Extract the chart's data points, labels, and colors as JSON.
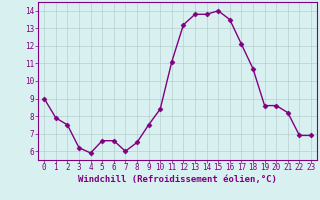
{
  "x": [
    0,
    1,
    2,
    3,
    4,
    5,
    6,
    7,
    8,
    9,
    10,
    11,
    12,
    13,
    14,
    15,
    16,
    17,
    18,
    19,
    20,
    21,
    22,
    23
  ],
  "y": [
    9.0,
    7.9,
    7.5,
    6.2,
    5.9,
    6.6,
    6.6,
    6.0,
    6.5,
    7.5,
    8.4,
    11.1,
    13.2,
    13.8,
    13.8,
    14.0,
    13.5,
    12.1,
    10.7,
    8.6,
    8.6,
    8.2,
    6.9,
    6.9
  ],
  "line_color": "#800080",
  "marker": "D",
  "marker_size": 2.5,
  "line_width": 1.0,
  "background_color": "#d9f0f0",
  "grid_color": "#b0c8c8",
  "xlabel": "Windchill (Refroidissement éolien,°C)",
  "xlabel_fontsize": 6.5,
  "ylim": [
    5.5,
    14.5
  ],
  "xlim": [
    -0.5,
    23.5
  ],
  "yticks": [
    6,
    7,
    8,
    9,
    10,
    11,
    12,
    13,
    14
  ],
  "xticks": [
    0,
    1,
    2,
    3,
    4,
    5,
    6,
    7,
    8,
    9,
    10,
    11,
    12,
    13,
    14,
    15,
    16,
    17,
    18,
    19,
    20,
    21,
    22,
    23
  ],
  "tick_fontsize": 5.5,
  "tick_color": "#800080",
  "label_color": "#800080"
}
